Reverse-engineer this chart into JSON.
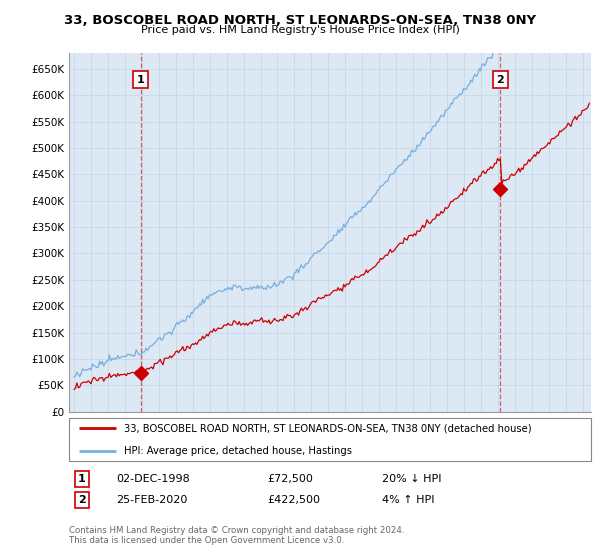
{
  "title_line1": "33, BOSCOBEL ROAD NORTH, ST LEONARDS-ON-SEA, TN38 0NY",
  "title_line2": "Price paid vs. HM Land Registry's House Price Index (HPI)",
  "ylabel_ticks": [
    "£0",
    "£50K",
    "£100K",
    "£150K",
    "£200K",
    "£250K",
    "£300K",
    "£350K",
    "£400K",
    "£450K",
    "£500K",
    "£550K",
    "£600K",
    "£650K"
  ],
  "ytick_values": [
    0,
    50000,
    100000,
    150000,
    200000,
    250000,
    300000,
    350000,
    400000,
    450000,
    500000,
    550000,
    600000,
    650000
  ],
  "ylim": [
    0,
    680000
  ],
  "xlim_start": 1994.7,
  "xlim_end": 2025.5,
  "sale1_year": 1998.92,
  "sale1_price": 72500,
  "sale2_year": 2020.15,
  "sale2_price": 422500,
  "hpi_line_color": "#7aaddc",
  "sale_line_color": "#cc0000",
  "marker_color": "#cc0000",
  "grid_color": "#c8d8e8",
  "chart_bg_color": "#dce9f5",
  "background_color": "#ffffff",
  "legend_label1": "33, BOSCOBEL ROAD NORTH, ST LEONARDS-ON-SEA, TN38 0NY (detached house)",
  "legend_label2": "HPI: Average price, detached house, Hastings",
  "table_row1": [
    "1",
    "02-DEC-1998",
    "£72,500",
    "20% ↓ HPI"
  ],
  "table_row2": [
    "2",
    "25-FEB-2020",
    "£422,500",
    "4% ↑ HPI"
  ],
  "footnote": "Contains HM Land Registry data © Crown copyright and database right 2024.\nThis data is licensed under the Open Government Licence v3.0.",
  "dashed_vline_color": "#cc0000",
  "dashed_vline_alpha": 0.6
}
